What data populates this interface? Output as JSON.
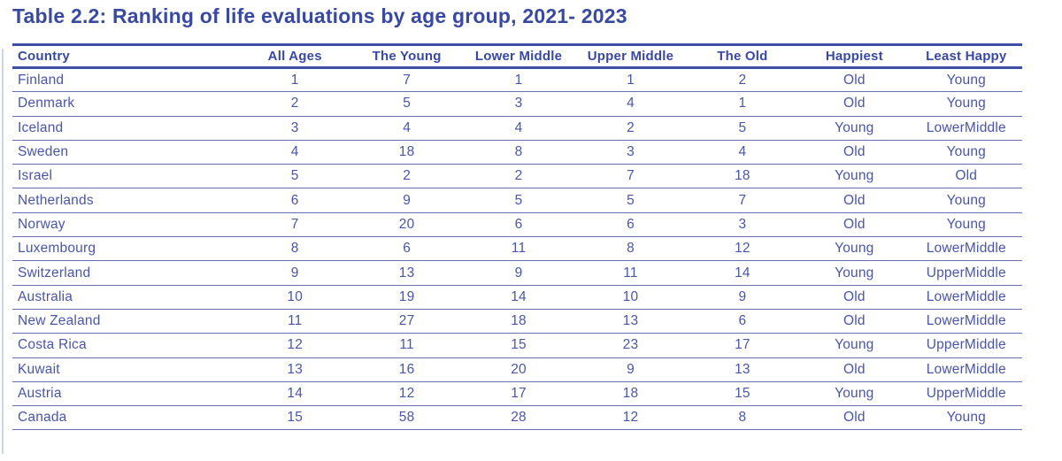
{
  "chart_data": {
    "type": "table",
    "title": "Table 2.2: Ranking of life evaluations by age group, 2021- 2023",
    "columns": [
      "Country",
      "All Ages",
      "The Young",
      "Lower Middle",
      "Upper Middle",
      "The Old",
      "Happiest",
      "Least Happy"
    ],
    "rows": [
      [
        "Finland",
        "1",
        "7",
        "1",
        "1",
        "2",
        "Old",
        "Young"
      ],
      [
        "Denmark",
        "2",
        "5",
        "3",
        "4",
        "1",
        "Old",
        "Young"
      ],
      [
        "Iceland",
        "3",
        "4",
        "4",
        "2",
        "5",
        "Young",
        "LowerMiddle"
      ],
      [
        "Sweden",
        "4",
        "18",
        "8",
        "3",
        "4",
        "Old",
        "Young"
      ],
      [
        "Israel",
        "5",
        "2",
        "2",
        "7",
        "18",
        "Young",
        "Old"
      ],
      [
        "Netherlands",
        "6",
        "9",
        "5",
        "5",
        "7",
        "Old",
        "Young"
      ],
      [
        "Norway",
        "7",
        "20",
        "6",
        "6",
        "3",
        "Old",
        "Young"
      ],
      [
        "Luxembourg",
        "8",
        "6",
        "11",
        "8",
        "12",
        "Young",
        "LowerMiddle"
      ],
      [
        "Switzerland",
        "9",
        "13",
        "9",
        "11",
        "14",
        "Young",
        "UpperMiddle"
      ],
      [
        "Australia",
        "10",
        "19",
        "14",
        "10",
        "9",
        "Old",
        "LowerMiddle"
      ],
      [
        "New Zealand",
        "11",
        "27",
        "18",
        "13",
        "6",
        "Old",
        "LowerMiddle"
      ],
      [
        "Costa Rica",
        "12",
        "11",
        "15",
        "23",
        "17",
        "Young",
        "UpperMiddle"
      ],
      [
        "Kuwait",
        "13",
        "16",
        "20",
        "9",
        "13",
        "Old",
        "LowerMiddle"
      ],
      [
        "Austria",
        "14",
        "12",
        "17",
        "18",
        "15",
        "Young",
        "UpperMiddle"
      ],
      [
        "Canada",
        "15",
        "58",
        "28",
        "12",
        "8",
        "Old",
        "Young"
      ]
    ]
  },
  "colors": {
    "title_color": "#3a49a0",
    "header_text": "#3a49a0",
    "body_text": "#4a56a5",
    "thick_line": "#3e4ea3",
    "thin_line": "#6470b2",
    "edge_artifact": "#c9cfe2"
  }
}
